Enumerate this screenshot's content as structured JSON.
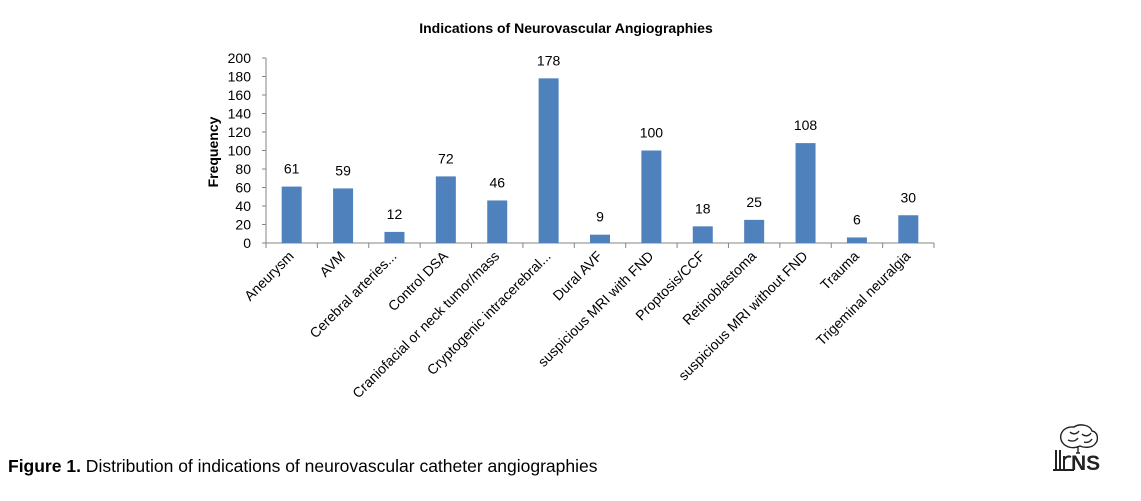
{
  "chart_data": {
    "type": "bar",
    "title": "Indications of Neurovascular Angiographies",
    "xlabel": "",
    "ylabel": "Frequency",
    "ylim": [
      0,
      200
    ],
    "yticks": [
      0,
      20,
      40,
      60,
      80,
      100,
      120,
      140,
      160,
      180,
      200
    ],
    "categories": [
      "Aneurysm",
      "AVM",
      "Cerebral arteries...",
      "Control DSA",
      "Craniofacial or neck tumor/mass",
      "Cryptogenic intracerebral...",
      "Dural AVF",
      "suspicious MRI with FND",
      "Proptosis/CCF",
      "Retinoblastoma",
      "suspicious MRI without FND",
      "Trauma",
      "Trigeminal neuralgia"
    ],
    "values": [
      61,
      59,
      12,
      72,
      46,
      178,
      9,
      100,
      18,
      25,
      108,
      6,
      30
    ],
    "bar_color": "#4f81bd",
    "grid": false,
    "legend": "none"
  },
  "caption": {
    "label": "Figure 1.",
    "text": " Distribution of indications of neurovascular catheter angiographies"
  },
  "logo": {
    "text": "NS"
  }
}
